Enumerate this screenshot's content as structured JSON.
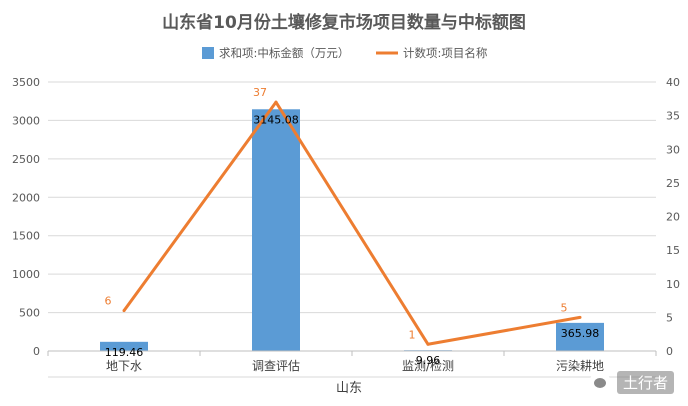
{
  "chart_data": {
    "type": "bar",
    "title": "山东省10月份土壤修复市场项目数量与中标额图",
    "xlabel": "山东",
    "categories": [
      "地下水",
      "调查评估",
      "监测/检测",
      "污染耕地"
    ],
    "series": [
      {
        "name": "求和项:中标金额（万元）",
        "type": "bar",
        "axis": "left",
        "color": "#5B9BD5",
        "values": [
          119.46,
          3145.08,
          9.96,
          365.98
        ],
        "labels": [
          "119.46",
          "3145.08",
          "9.96",
          "365.98"
        ]
      },
      {
        "name": "计数项:项目名称",
        "type": "line",
        "axis": "right",
        "color": "#ED7D31",
        "values": [
          6,
          37,
          1,
          5
        ],
        "labels": [
          "6",
          "37",
          "1",
          "5"
        ]
      }
    ],
    "ylim_left": [
      0,
      3500
    ],
    "ylim_right": [
      0,
      40
    ],
    "yticks_left": [
      "0",
      "500",
      "1000",
      "1500",
      "2000",
      "2500",
      "3000",
      "3500"
    ],
    "yticks_right": [
      "0",
      "5",
      "10",
      "15",
      "20",
      "25",
      "30",
      "35",
      "40"
    ],
    "grid": true,
    "legend_position": "top"
  },
  "watermark": {
    "text": "土行者",
    "icon": "wechat-icon"
  }
}
